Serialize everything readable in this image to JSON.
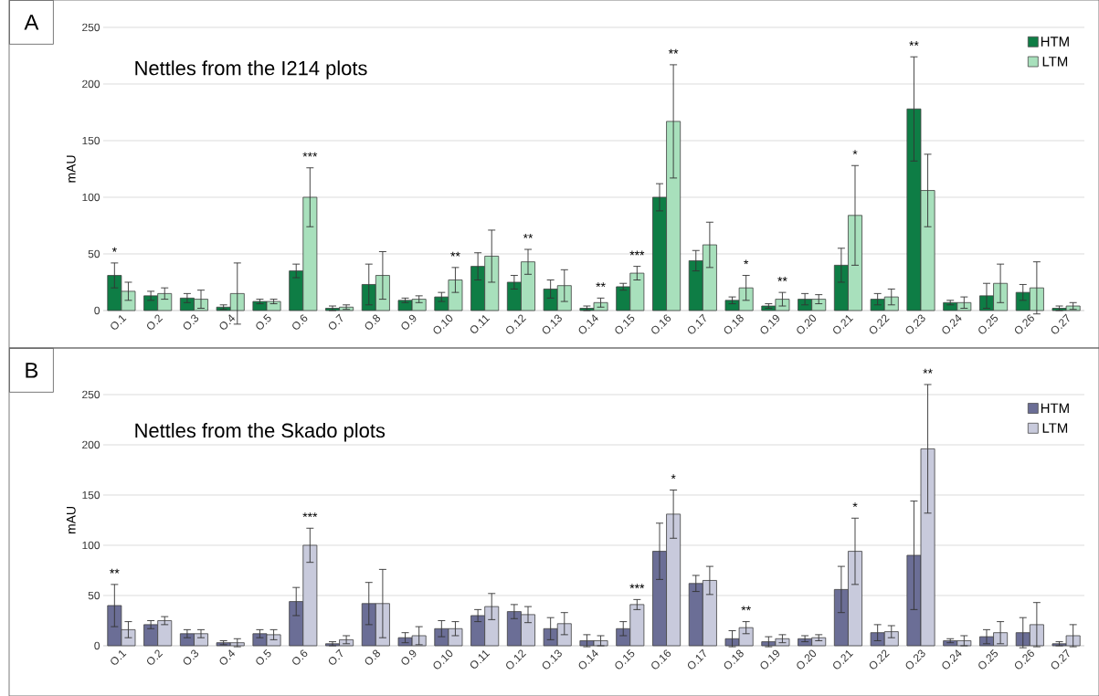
{
  "chart_data": [
    {
      "type": "bar",
      "title": "Nettles from the I214 plots",
      "ylabel": "mAU",
      "categories": [
        "O.1",
        "O.2",
        "O.3",
        "O.4",
        "O.5",
        "O.6",
        "O.7",
        "O.8",
        "O.9",
        "O.10",
        "O.11",
        "O.12",
        "O.13",
        "O.14",
        "O.15",
        "O.16",
        "O.17",
        "O.18",
        "O.19",
        "O.20",
        "O.21",
        "O.22",
        "O.23",
        "O.24",
        "O.25",
        "O.26",
        "O.27"
      ],
      "series": [
        {
          "name": "HTM",
          "color": "#0e7d45",
          "values": [
            31,
            13,
            11,
            3,
            8,
            35,
            2,
            23,
            9,
            12,
            39,
            25,
            19,
            2,
            21,
            100,
            44,
            9,
            4,
            10,
            40,
            10,
            178,
            7,
            13,
            16,
            2
          ],
          "errors": [
            11,
            4,
            4,
            2,
            2,
            6,
            2,
            18,
            2,
            4,
            12,
            6,
            8,
            2,
            3,
            12,
            9,
            3,
            2,
            5,
            15,
            5,
            46,
            2,
            11,
            7,
            2
          ]
        },
        {
          "name": "LTM",
          "color": "#a8e0bc",
          "values": [
            17,
            15,
            10,
            15,
            8,
            100,
            3,
            31,
            10,
            27,
            48,
            43,
            22,
            7,
            33,
            167,
            58,
            20,
            10,
            10,
            84,
            12,
            106,
            7,
            24,
            20,
            4
          ],
          "errors": [
            8,
            5,
            8,
            27,
            2,
            26,
            2,
            21,
            3,
            11,
            23,
            11,
            14,
            4,
            6,
            50,
            20,
            11,
            6,
            4,
            44,
            7,
            32,
            5,
            17,
            23,
            3
          ]
        }
      ],
      "ylim": [
        0,
        250
      ],
      "yticks": [
        0,
        50,
        100,
        150,
        200,
        250
      ],
      "grid": "y",
      "legend": "top right",
      "annotations": [
        "A",
        "*",
        "***",
        "**",
        "**",
        "**",
        "***",
        "**",
        "*",
        "**",
        "*",
        "**"
      ]
    },
    {
      "type": "bar",
      "title": "Nettles from the Skado plots",
      "ylabel": "mAU",
      "categories": [
        "O.1",
        "O.2",
        "O.3",
        "O.4",
        "O.5",
        "O.6",
        "O.7",
        "O.8",
        "O.9",
        "O.10",
        "O.11",
        "O.12",
        "O.13",
        "O.14",
        "O.15",
        "O.16",
        "O.17",
        "O.18",
        "O.19",
        "O.20",
        "O.21",
        "O.22",
        "O.23",
        "O.24",
        "O.25",
        "O.26",
        "O.27"
      ],
      "series": [
        {
          "name": "HTM",
          "color": "#6b6e96",
          "values": [
            40,
            21,
            12,
            3,
            12,
            44,
            2,
            42,
            8,
            17,
            30,
            34,
            17,
            5,
            17,
            94,
            62,
            7,
            4,
            7,
            56,
            13,
            90,
            5,
            9,
            13,
            2
          ],
          "errors": [
            21,
            4,
            4,
            2,
            4,
            14,
            2,
            21,
            5,
            8,
            6,
            7,
            11,
            6,
            7,
            28,
            8,
            8,
            5,
            3,
            23,
            8,
            54,
            2,
            7,
            15,
            2
          ]
        },
        {
          "name": "LTM",
          "color": "#c8cadc",
          "values": [
            16,
            25,
            12,
            3,
            11,
            100,
            6,
            42,
            10,
            17,
            39,
            31,
            22,
            5,
            41,
            131,
            65,
            18,
            7,
            8,
            94,
            14,
            196,
            5,
            13,
            21,
            10
          ],
          "errors": [
            8,
            4,
            4,
            4,
            5,
            17,
            4,
            34,
            9,
            7,
            13,
            8,
            11,
            5,
            5,
            24,
            14,
            6,
            4,
            3,
            33,
            6,
            64,
            5,
            11,
            22,
            11
          ]
        }
      ],
      "ylim": [
        0,
        250
      ],
      "yticks": [
        0,
        50,
        100,
        150,
        200,
        250
      ],
      "grid": "y",
      "legend": "top right",
      "annotations": [
        "B",
        "**",
        "***",
        "***",
        "*",
        "**",
        "*",
        "**"
      ]
    }
  ]
}
